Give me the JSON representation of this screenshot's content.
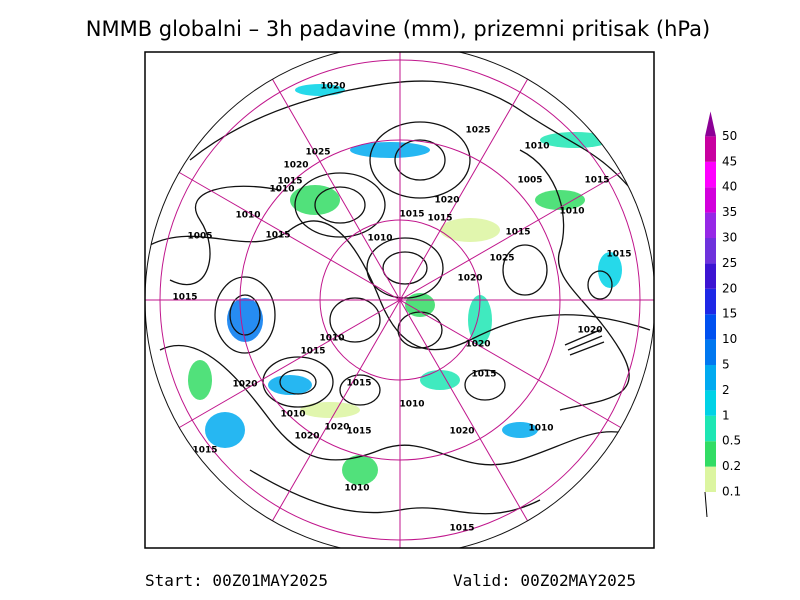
{
  "header": {
    "title": "NMMB globalni – 3h padavine (mm), prizemni pritisak (hPa)"
  },
  "legend": {
    "levels": [
      {
        "label": "0.1",
        "color": "#dcf5a0"
      },
      {
        "label": "0.2",
        "color": "#32dc64"
      },
      {
        "label": "0.5",
        "color": "#1ee6b4"
      },
      {
        "label": "1",
        "color": "#00d2e6"
      },
      {
        "label": "2",
        "color": "#00aaf0"
      },
      {
        "label": "5",
        "color": "#0078f0"
      },
      {
        "label": "10",
        "color": "#0050f0"
      },
      {
        "label": "15",
        "color": "#1e28e6"
      },
      {
        "label": "20",
        "color": "#3c14d2"
      },
      {
        "label": "25",
        "color": "#6e32dc"
      },
      {
        "label": "30",
        "color": "#9628e6"
      },
      {
        "label": "35",
        "color": "#d200dc"
      },
      {
        "label": "40",
        "color": "#ff00ff"
      },
      {
        "label": "45",
        "color": "#c800a0"
      },
      {
        "label": "50",
        "color": "#8c0096"
      }
    ]
  },
  "isobar_labels": [
    "1020",
    "1025",
    "1010",
    "1025",
    "1020",
    "1015",
    "1010",
    "1005",
    "1015",
    "1010",
    "1015",
    "1020",
    "1015",
    "1010",
    "1015",
    "1005",
    "1015",
    "1010",
    "1025",
    "1015",
    "1020",
    "1015",
    "1020",
    "1010",
    "1015",
    "1020",
    "1015",
    "1020",
    "1015",
    "1010",
    "1010",
    "1020",
    "1020",
    "1015",
    "1020",
    "1010",
    "1015",
    "1010",
    "1015"
  ],
  "footer": {
    "start": "Start: 00Z01MAY2025",
    "valid": "Valid: 00Z02MAY2025"
  }
}
